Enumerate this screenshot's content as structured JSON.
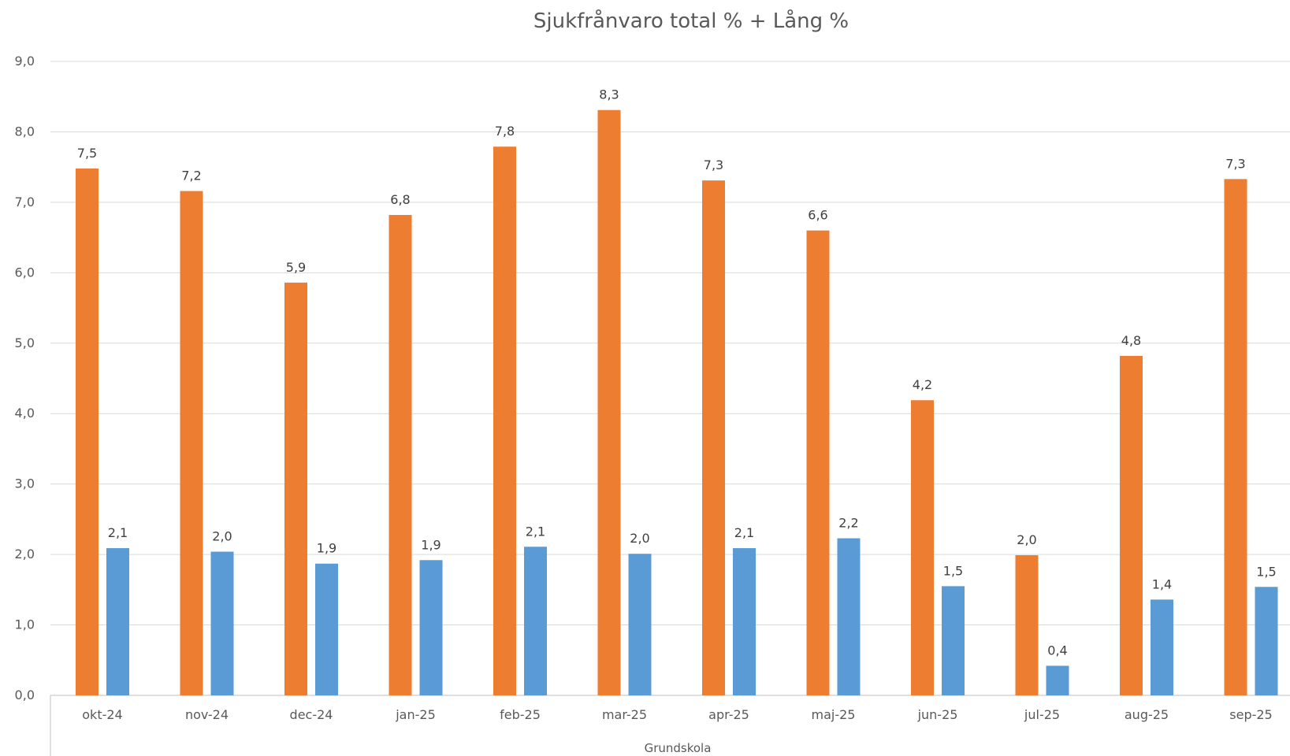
{
  "chart_data": {
    "type": "bar",
    "title": "Sjukfrånvaro total % + Lång %",
    "xlabel": "Grundskola",
    "ylabel": "",
    "ylim": [
      0,
      9
    ],
    "yticks": [
      "0,0",
      "1,0",
      "2,0",
      "3,0",
      "4,0",
      "5,0",
      "6,0",
      "7,0",
      "8,0",
      "9,0"
    ],
    "grid": true,
    "legend": "none",
    "categories": [
      "okt-24",
      "nov-24",
      "dec-24",
      "jan-25",
      "feb-25",
      "mar-25",
      "apr-25",
      "maj-25",
      "jun-25",
      "jul-25",
      "aug-25",
      "sep-25"
    ],
    "series": [
      {
        "color": "#ed7d31",
        "values": [
          7.48,
          7.16,
          5.86,
          6.82,
          7.79,
          8.31,
          7.31,
          6.6,
          4.19,
          1.99,
          4.82,
          7.33
        ],
        "labels": [
          "7,5",
          "7,2",
          "5,9",
          "6,8",
          "7,8",
          "8,3",
          "7,3",
          "6,6",
          "4,2",
          "2,0",
          "4,8",
          "7,3"
        ]
      },
      {
        "color": "#5b9bd5",
        "values": [
          2.09,
          2.04,
          1.87,
          1.92,
          2.11,
          2.01,
          2.09,
          2.23,
          1.55,
          0.42,
          1.36,
          1.54
        ],
        "labels": [
          "2,1",
          "2,0",
          "1,9",
          "1,9",
          "2,1",
          "2,0",
          "2,1",
          "2,2",
          "1,5",
          "0,4",
          "1,4",
          "1,5"
        ]
      }
    ]
  }
}
